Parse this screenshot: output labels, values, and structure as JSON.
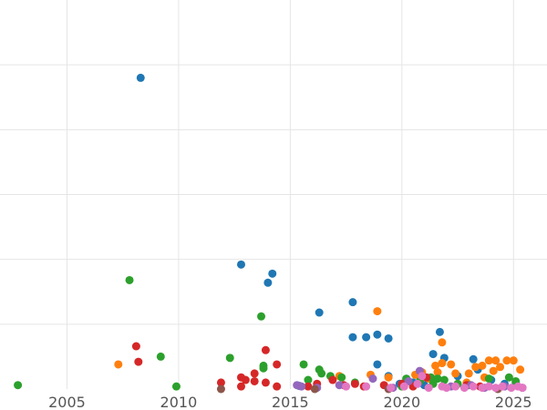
{
  "chart_data": {
    "type": "scatter",
    "title": "",
    "xlabel": "",
    "ylabel": "",
    "xlim": [
      2002,
      2026.5
    ],
    "ylim": [
      0,
      600
    ],
    "grid": true,
    "x_ticks": [
      {
        "value": 2005,
        "label": "2005"
      },
      {
        "value": 2010,
        "label": "2010"
      },
      {
        "value": 2015,
        "label": "2015"
      },
      {
        "value": 2020,
        "label": "2020"
      },
      {
        "value": 2025,
        "label": "2025"
      }
    ],
    "y_gridlines": [
      100,
      200,
      300,
      400,
      500
    ],
    "series": [
      {
        "color": "#1f77b4",
        "points": [
          [
            2008.3,
            480
          ],
          [
            2012.8,
            192
          ],
          [
            2014.0,
            164
          ],
          [
            2014.2,
            178
          ],
          [
            2016.3,
            118
          ],
          [
            2017.8,
            134
          ],
          [
            2017.8,
            80
          ],
          [
            2018.4,
            80
          ],
          [
            2018.9,
            84
          ],
          [
            2019.4,
            78
          ],
          [
            2018.9,
            38
          ],
          [
            2019.4,
            20
          ],
          [
            2021.4,
            54
          ],
          [
            2021.7,
            88
          ],
          [
            2021.9,
            48
          ],
          [
            2022.5,
            20
          ],
          [
            2023.2,
            46
          ],
          [
            2023.4,
            30
          ],
          [
            2024.0,
            14
          ],
          [
            2024.6,
            8
          ],
          [
            2025.1,
            10
          ],
          [
            2019.9,
            8
          ],
          [
            2015.4,
            5
          ],
          [
            2021.0,
            6
          ],
          [
            2020.5,
            10
          ]
        ]
      },
      {
        "color": "#ff7f0e",
        "points": [
          [
            2007.3,
            38
          ],
          [
            2017.2,
            20
          ],
          [
            2018.9,
            120
          ],
          [
            2021.8,
            72
          ],
          [
            2018.6,
            22
          ],
          [
            2019.4,
            18
          ],
          [
            2020.2,
            14
          ],
          [
            2020.6,
            22
          ],
          [
            2021.2,
            16
          ],
          [
            2021.5,
            36
          ],
          [
            2021.8,
            40
          ],
          [
            2022.2,
            38
          ],
          [
            2022.4,
            24
          ],
          [
            2023.0,
            24
          ],
          [
            2023.3,
            34
          ],
          [
            2023.6,
            36
          ],
          [
            2023.9,
            44
          ],
          [
            2024.2,
            44
          ],
          [
            2024.4,
            34
          ],
          [
            2024.7,
            44
          ],
          [
            2025.0,
            44
          ],
          [
            2025.3,
            30
          ],
          [
            2024.1,
            28
          ],
          [
            2023.7,
            18
          ],
          [
            2022.9,
            10
          ],
          [
            2021.6,
            26
          ],
          [
            2020.9,
            26
          ]
        ]
      },
      {
        "color": "#2ca02c",
        "points": [
          [
            2002.8,
            6
          ],
          [
            2007.8,
            168
          ],
          [
            2009.2,
            50
          ],
          [
            2009.9,
            4
          ],
          [
            2012.3,
            48
          ],
          [
            2013.7,
            112
          ],
          [
            2013.8,
            36
          ],
          [
            2013.8,
            32
          ],
          [
            2015.6,
            38
          ],
          [
            2016.3,
            30
          ],
          [
            2016.4,
            24
          ],
          [
            2015.8,
            14
          ],
          [
            2016.8,
            20
          ],
          [
            2017.3,
            18
          ],
          [
            2017.9,
            10
          ],
          [
            2020.2,
            16
          ],
          [
            2020.8,
            12
          ],
          [
            2021.3,
            18
          ],
          [
            2021.6,
            16
          ],
          [
            2021.9,
            14
          ],
          [
            2022.5,
            8
          ],
          [
            2023.0,
            6
          ],
          [
            2023.9,
            16
          ],
          [
            2024.8,
            18
          ],
          [
            2025.1,
            12
          ],
          [
            2020.0,
            4
          ],
          [
            2021.4,
            8
          ]
        ]
      },
      {
        "color": "#d62728",
        "points": [
          [
            2008.1,
            66
          ],
          [
            2008.2,
            42
          ],
          [
            2011.9,
            10
          ],
          [
            2012.8,
            18
          ],
          [
            2013.0,
            14
          ],
          [
            2012.8,
            4
          ],
          [
            2013.4,
            12
          ],
          [
            2013.4,
            24
          ],
          [
            2013.9,
            60
          ],
          [
            2014.4,
            38
          ],
          [
            2014.4,
            4
          ],
          [
            2013.9,
            10
          ],
          [
            2015.8,
            4
          ],
          [
            2016.2,
            8
          ],
          [
            2016.9,
            14
          ],
          [
            2017.4,
            6
          ],
          [
            2017.9,
            8
          ],
          [
            2018.3,
            4
          ],
          [
            2019.2,
            6
          ],
          [
            2020.0,
            8
          ],
          [
            2020.5,
            4
          ],
          [
            2021.1,
            18
          ],
          [
            2022.9,
            6
          ],
          [
            2023.5,
            4
          ]
        ]
      },
      {
        "color": "#9467bd",
        "points": [
          [
            2015.3,
            6
          ],
          [
            2015.5,
            4
          ],
          [
            2016.2,
            2
          ],
          [
            2017.2,
            6
          ],
          [
            2018.7,
            16
          ],
          [
            2019.6,
            2
          ],
          [
            2020.3,
            12
          ],
          [
            2020.8,
            28
          ],
          [
            2022.2,
            4
          ],
          [
            2023.1,
            6
          ],
          [
            2023.7,
            2
          ],
          [
            2024.6,
            4
          ],
          [
            2025.4,
            2
          ]
        ]
      },
      {
        "color": "#8c564b",
        "points": [
          [
            2011.9,
            0
          ],
          [
            2016.1,
            0
          ],
          [
            2019.4,
            0
          ],
          [
            2024.3,
            0
          ]
        ]
      },
      {
        "color": "#e377c2",
        "points": [
          [
            2017.5,
            4
          ],
          [
            2018.4,
            4
          ],
          [
            2019.5,
            2
          ],
          [
            2020.1,
            4
          ],
          [
            2020.7,
            8
          ],
          [
            2021.2,
            2
          ],
          [
            2021.8,
            4
          ],
          [
            2022.0,
            2
          ],
          [
            2022.4,
            4
          ],
          [
            2022.8,
            2
          ],
          [
            2023.2,
            4
          ],
          [
            2023.6,
            2
          ],
          [
            2023.9,
            4
          ],
          [
            2024.2,
            2
          ],
          [
            2024.5,
            4
          ],
          [
            2024.9,
            2
          ],
          [
            2025.2,
            4
          ],
          [
            2025.4,
            2
          ],
          [
            2020.9,
            20
          ]
        ]
      }
    ]
  }
}
